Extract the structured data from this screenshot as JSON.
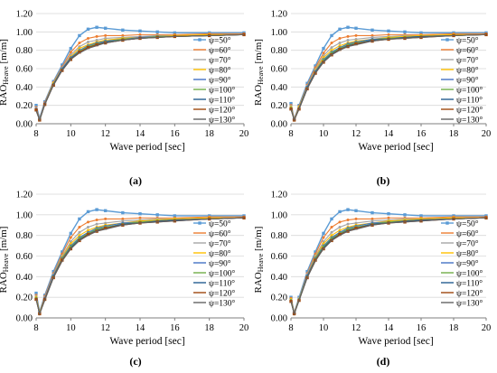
{
  "colors": {
    "50": "#5B9BD5",
    "60": "#ED7D31",
    "70": "#A5A5A5",
    "80": "#FFC000",
    "90": "#4472C4",
    "100": "#70AD47",
    "110": "#255E91",
    "120": "#9E480E",
    "130": "#636363"
  },
  "chart_data": [
    {
      "type": "line",
      "panel_label": "(a)",
      "xlabel": "Wave period [sec]",
      "ylabel_main": "RAO",
      "ylabel_sub": "Heave",
      "ylabel_unit": "[m/m]",
      "xlim": [
        8,
        20
      ],
      "ylim": [
        0,
        1.2
      ],
      "x_ticks": [
        "8",
        "10",
        "12",
        "14",
        "16",
        "18",
        "20"
      ],
      "y_ticks": [
        "0.00",
        "0.20",
        "0.40",
        "0.60",
        "0.80",
        "1.00",
        "1.20"
      ],
      "x": [
        8.0,
        8.2,
        8.5,
        9.0,
        9.5,
        10.0,
        10.5,
        11.0,
        11.5,
        12.0,
        13.0,
        14.0,
        15.0,
        16.0,
        18.0,
        20.0
      ],
      "legend_position": "right",
      "series": [
        {
          "name": "ψ=50°",
          "color_key": "50",
          "values": [
            0.2,
            0.06,
            0.24,
            0.46,
            0.64,
            0.82,
            0.96,
            1.03,
            1.05,
            1.04,
            1.02,
            1.01,
            1.0,
            0.99,
            0.99,
            0.99
          ]
        },
        {
          "name": "ψ=60°",
          "color_key": "60",
          "values": [
            0.18,
            0.05,
            0.23,
            0.45,
            0.62,
            0.78,
            0.88,
            0.93,
            0.95,
            0.96,
            0.96,
            0.97,
            0.97,
            0.97,
            0.98,
            0.98
          ]
        },
        {
          "name": "ψ=70°",
          "color_key": "70",
          "values": [
            0.17,
            0.05,
            0.22,
            0.44,
            0.61,
            0.75,
            0.84,
            0.89,
            0.91,
            0.93,
            0.94,
            0.95,
            0.96,
            0.96,
            0.97,
            0.97
          ]
        },
        {
          "name": "ψ=80°",
          "color_key": "80",
          "values": [
            0.16,
            0.04,
            0.22,
            0.44,
            0.6,
            0.73,
            0.82,
            0.86,
            0.89,
            0.91,
            0.93,
            0.94,
            0.95,
            0.96,
            0.97,
            0.97
          ]
        },
        {
          "name": "ψ=90°",
          "color_key": "90",
          "values": [
            0.16,
            0.04,
            0.22,
            0.43,
            0.6,
            0.72,
            0.8,
            0.85,
            0.88,
            0.9,
            0.92,
            0.94,
            0.95,
            0.95,
            0.96,
            0.97
          ]
        },
        {
          "name": "ψ=100°",
          "color_key": "100",
          "values": [
            0.15,
            0.04,
            0.21,
            0.43,
            0.59,
            0.71,
            0.79,
            0.84,
            0.87,
            0.89,
            0.92,
            0.93,
            0.95,
            0.95,
            0.96,
            0.97
          ]
        },
        {
          "name": "ψ=110°",
          "color_key": "110",
          "values": [
            0.15,
            0.04,
            0.21,
            0.43,
            0.59,
            0.71,
            0.78,
            0.83,
            0.86,
            0.89,
            0.91,
            0.93,
            0.94,
            0.95,
            0.96,
            0.97
          ]
        },
        {
          "name": "ψ=120°",
          "color_key": "120",
          "values": [
            0.15,
            0.04,
            0.21,
            0.42,
            0.58,
            0.7,
            0.78,
            0.83,
            0.86,
            0.88,
            0.91,
            0.93,
            0.94,
            0.95,
            0.96,
            0.97
          ]
        },
        {
          "name": "ψ=130°",
          "color_key": "130",
          "values": [
            0.14,
            0.04,
            0.21,
            0.42,
            0.58,
            0.7,
            0.77,
            0.82,
            0.85,
            0.88,
            0.91,
            0.93,
            0.94,
            0.95,
            0.96,
            0.97
          ]
        }
      ]
    },
    {
      "type": "line",
      "panel_label": "(b)",
      "xlabel": "Wave period [sec]",
      "ylabel_main": "RAO",
      "ylabel_sub": "Heave",
      "ylabel_unit": "[m/m]",
      "xlim": [
        8,
        20
      ],
      "ylim": [
        0,
        1.2
      ],
      "x_ticks": [
        "8",
        "10",
        "12",
        "14",
        "16",
        "18",
        "20"
      ],
      "y_ticks": [
        "0.00",
        "0.20",
        "0.40",
        "0.60",
        "0.80",
        "1.00",
        "1.20"
      ],
      "x": [
        8.0,
        8.2,
        8.5,
        9.0,
        9.5,
        10.0,
        10.5,
        11.0,
        11.5,
        12.0,
        13.0,
        14.0,
        15.0,
        16.0,
        18.0,
        20.0
      ],
      "legend_position": "right",
      "series": [
        {
          "name": "ψ=50°",
          "color_key": "50",
          "values": [
            0.22,
            0.05,
            0.2,
            0.44,
            0.63,
            0.82,
            0.96,
            1.03,
            1.05,
            1.04,
            1.02,
            1.01,
            1.0,
            0.99,
            0.99,
            0.99
          ]
        },
        {
          "name": "ψ=60°",
          "color_key": "60",
          "values": [
            0.2,
            0.05,
            0.19,
            0.42,
            0.61,
            0.77,
            0.88,
            0.93,
            0.95,
            0.96,
            0.96,
            0.97,
            0.97,
            0.97,
            0.98,
            0.98
          ]
        },
        {
          "name": "ψ=70°",
          "color_key": "70",
          "values": [
            0.19,
            0.04,
            0.18,
            0.41,
            0.59,
            0.74,
            0.83,
            0.88,
            0.91,
            0.92,
            0.94,
            0.95,
            0.96,
            0.96,
            0.97,
            0.97
          ]
        },
        {
          "name": "ψ=80°",
          "color_key": "80",
          "values": [
            0.18,
            0.04,
            0.18,
            0.4,
            0.58,
            0.72,
            0.8,
            0.85,
            0.88,
            0.9,
            0.92,
            0.94,
            0.95,
            0.96,
            0.97,
            0.97
          ]
        },
        {
          "name": "ψ=90°",
          "color_key": "90",
          "values": [
            0.17,
            0.04,
            0.17,
            0.4,
            0.57,
            0.7,
            0.78,
            0.83,
            0.87,
            0.89,
            0.92,
            0.93,
            0.94,
            0.95,
            0.96,
            0.97
          ]
        },
        {
          "name": "ψ=100°",
          "color_key": "100",
          "values": [
            0.17,
            0.04,
            0.17,
            0.39,
            0.56,
            0.69,
            0.77,
            0.82,
            0.86,
            0.88,
            0.91,
            0.93,
            0.94,
            0.95,
            0.96,
            0.97
          ]
        },
        {
          "name": "ψ=110°",
          "color_key": "110",
          "values": [
            0.16,
            0.04,
            0.17,
            0.39,
            0.56,
            0.68,
            0.76,
            0.81,
            0.85,
            0.87,
            0.91,
            0.92,
            0.94,
            0.95,
            0.96,
            0.97
          ]
        },
        {
          "name": "ψ=120°",
          "color_key": "120",
          "values": [
            0.16,
            0.04,
            0.16,
            0.38,
            0.55,
            0.67,
            0.75,
            0.81,
            0.84,
            0.87,
            0.9,
            0.92,
            0.93,
            0.94,
            0.96,
            0.97
          ]
        },
        {
          "name": "ψ=130°",
          "color_key": "130",
          "values": [
            0.16,
            0.04,
            0.16,
            0.38,
            0.55,
            0.67,
            0.75,
            0.8,
            0.84,
            0.86,
            0.9,
            0.92,
            0.93,
            0.94,
            0.96,
            0.97
          ]
        }
      ]
    },
    {
      "type": "line",
      "panel_label": "(c)",
      "xlabel": "Wave period [sec]",
      "ylabel_main": "RAO",
      "ylabel_sub": "Heave",
      "ylabel_unit": "[m/m]",
      "xlim": [
        8,
        20
      ],
      "ylim": [
        0,
        1.2
      ],
      "x_ticks": [
        "8",
        "10",
        "12",
        "14",
        "16",
        "18",
        "20"
      ],
      "y_ticks": [
        "0.00",
        "0.20",
        "0.40",
        "0.60",
        "0.80",
        "1.00",
        "1.20"
      ],
      "x": [
        8.0,
        8.2,
        8.5,
        9.0,
        9.5,
        10.0,
        10.5,
        11.0,
        11.5,
        12.0,
        13.0,
        14.0,
        15.0,
        16.0,
        18.0,
        20.0
      ],
      "legend_position": "right",
      "series": [
        {
          "name": "ψ=50°",
          "color_key": "50",
          "values": [
            0.24,
            0.06,
            0.22,
            0.45,
            0.64,
            0.82,
            0.96,
            1.03,
            1.05,
            1.04,
            1.02,
            1.01,
            1.0,
            0.99,
            0.99,
            0.99
          ]
        },
        {
          "name": "ψ=60°",
          "color_key": "60",
          "values": [
            0.22,
            0.05,
            0.21,
            0.43,
            0.62,
            0.78,
            0.88,
            0.93,
            0.95,
            0.96,
            0.96,
            0.97,
            0.97,
            0.97,
            0.98,
            0.98
          ]
        },
        {
          "name": "ψ=70°",
          "color_key": "70",
          "values": [
            0.21,
            0.05,
            0.2,
            0.42,
            0.6,
            0.74,
            0.83,
            0.88,
            0.91,
            0.92,
            0.94,
            0.95,
            0.96,
            0.96,
            0.97,
            0.97
          ]
        },
        {
          "name": "ψ=80°",
          "color_key": "80",
          "values": [
            0.2,
            0.05,
            0.19,
            0.41,
            0.59,
            0.72,
            0.8,
            0.85,
            0.88,
            0.9,
            0.92,
            0.94,
            0.95,
            0.96,
            0.97,
            0.97
          ]
        },
        {
          "name": "ψ=90°",
          "color_key": "90",
          "values": [
            0.19,
            0.04,
            0.19,
            0.41,
            0.58,
            0.7,
            0.78,
            0.83,
            0.87,
            0.89,
            0.92,
            0.93,
            0.94,
            0.95,
            0.96,
            0.97
          ]
        },
        {
          "name": "ψ=100°",
          "color_key": "100",
          "values": [
            0.19,
            0.04,
            0.18,
            0.4,
            0.57,
            0.69,
            0.77,
            0.82,
            0.86,
            0.88,
            0.91,
            0.93,
            0.94,
            0.95,
            0.96,
            0.97
          ]
        },
        {
          "name": "ψ=110°",
          "color_key": "110",
          "values": [
            0.18,
            0.04,
            0.18,
            0.4,
            0.56,
            0.68,
            0.76,
            0.81,
            0.85,
            0.87,
            0.91,
            0.92,
            0.94,
            0.95,
            0.96,
            0.97
          ]
        },
        {
          "name": "ψ=120°",
          "color_key": "120",
          "values": [
            0.18,
            0.04,
            0.18,
            0.39,
            0.56,
            0.67,
            0.75,
            0.81,
            0.84,
            0.87,
            0.9,
            0.92,
            0.93,
            0.94,
            0.96,
            0.97
          ]
        },
        {
          "name": "ψ=130°",
          "color_key": "130",
          "values": [
            0.18,
            0.04,
            0.17,
            0.39,
            0.55,
            0.67,
            0.75,
            0.8,
            0.84,
            0.86,
            0.9,
            0.92,
            0.93,
            0.94,
            0.96,
            0.97
          ]
        }
      ]
    },
    {
      "type": "line",
      "panel_label": "(d)",
      "xlabel": "Wave period [sec]",
      "ylabel_main": "RAO",
      "ylabel_sub": "Heave",
      "ylabel_unit": "[m/m]",
      "xlim": [
        8,
        20
      ],
      "ylim": [
        0,
        1.2
      ],
      "x_ticks": [
        "8",
        "10",
        "12",
        "14",
        "16",
        "18",
        "20"
      ],
      "y_ticks": [
        "0.00",
        "0.20",
        "0.40",
        "0.60",
        "0.80",
        "1.00",
        "1.20"
      ],
      "x": [
        8.0,
        8.2,
        8.5,
        9.0,
        9.5,
        10.0,
        10.5,
        11.0,
        11.5,
        12.0,
        13.0,
        14.0,
        15.0,
        16.0,
        18.0,
        20.0
      ],
      "legend_position": "right",
      "series": [
        {
          "name": "ψ=50°",
          "color_key": "50",
          "values": [
            0.2,
            0.05,
            0.2,
            0.45,
            0.64,
            0.82,
            0.96,
            1.03,
            1.05,
            1.04,
            1.02,
            1.01,
            1.0,
            0.99,
            0.99,
            0.99
          ]
        },
        {
          "name": "ψ=60°",
          "color_key": "60",
          "values": [
            0.19,
            0.05,
            0.19,
            0.43,
            0.62,
            0.78,
            0.88,
            0.93,
            0.95,
            0.96,
            0.96,
            0.97,
            0.97,
            0.97,
            0.98,
            0.98
          ]
        },
        {
          "name": "ψ=70°",
          "color_key": "70",
          "values": [
            0.18,
            0.04,
            0.19,
            0.42,
            0.6,
            0.74,
            0.83,
            0.88,
            0.91,
            0.92,
            0.94,
            0.95,
            0.96,
            0.96,
            0.97,
            0.97
          ]
        },
        {
          "name": "ψ=80°",
          "color_key": "80",
          "values": [
            0.18,
            0.04,
            0.18,
            0.41,
            0.59,
            0.72,
            0.8,
            0.85,
            0.88,
            0.9,
            0.92,
            0.94,
            0.95,
            0.96,
            0.97,
            0.97
          ]
        },
        {
          "name": "ψ=90°",
          "color_key": "90",
          "values": [
            0.17,
            0.04,
            0.18,
            0.41,
            0.58,
            0.7,
            0.78,
            0.83,
            0.87,
            0.89,
            0.92,
            0.93,
            0.94,
            0.95,
            0.96,
            0.97
          ]
        },
        {
          "name": "ψ=100°",
          "color_key": "100",
          "values": [
            0.17,
            0.04,
            0.18,
            0.4,
            0.57,
            0.69,
            0.77,
            0.82,
            0.86,
            0.88,
            0.91,
            0.93,
            0.94,
            0.95,
            0.96,
            0.97
          ]
        },
        {
          "name": "ψ=110°",
          "color_key": "110",
          "values": [
            0.16,
            0.04,
            0.17,
            0.4,
            0.56,
            0.68,
            0.76,
            0.81,
            0.85,
            0.87,
            0.91,
            0.92,
            0.94,
            0.95,
            0.96,
            0.97
          ]
        },
        {
          "name": "ψ=120°",
          "color_key": "120",
          "values": [
            0.16,
            0.04,
            0.17,
            0.39,
            0.56,
            0.67,
            0.75,
            0.81,
            0.84,
            0.87,
            0.9,
            0.92,
            0.93,
            0.94,
            0.96,
            0.97
          ]
        },
        {
          "name": "ψ=130°",
          "color_key": "130",
          "values": [
            0.16,
            0.04,
            0.17,
            0.39,
            0.55,
            0.67,
            0.75,
            0.8,
            0.84,
            0.86,
            0.9,
            0.92,
            0.93,
            0.94,
            0.96,
            0.97
          ]
        }
      ]
    }
  ]
}
